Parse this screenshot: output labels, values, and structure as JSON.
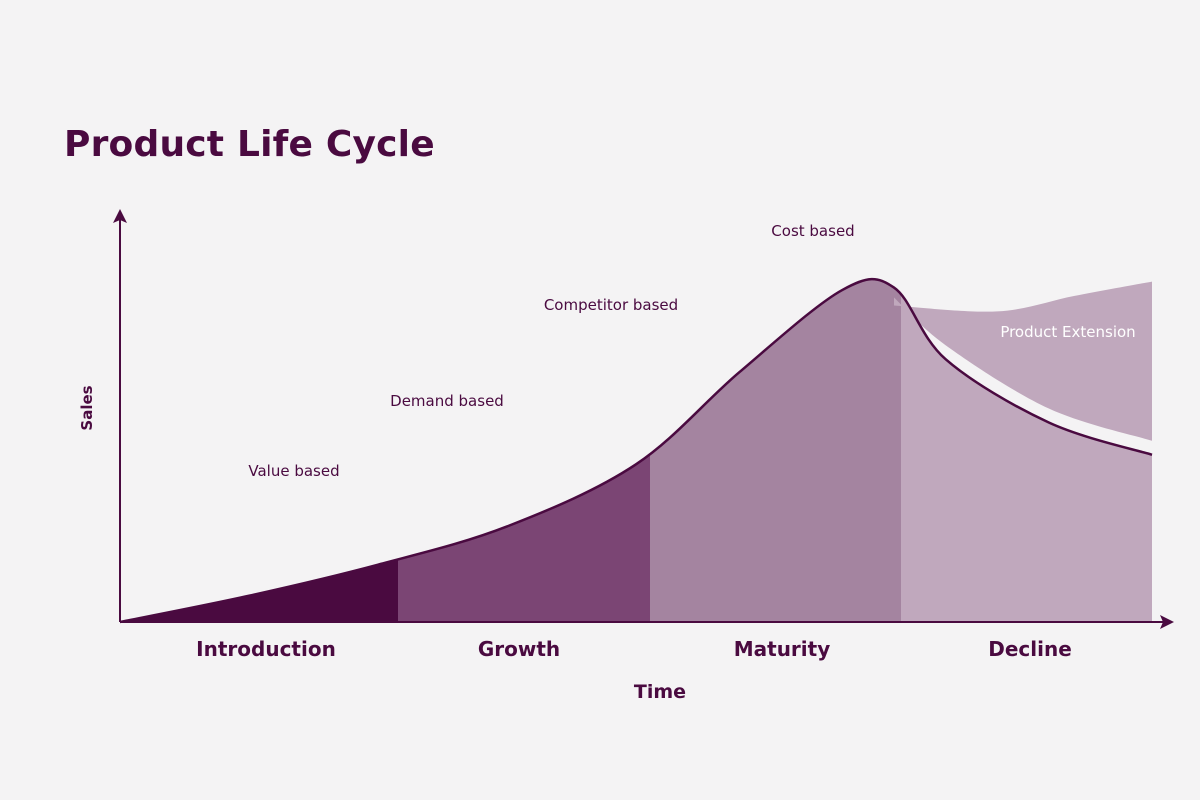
{
  "chart_data": {
    "type": "area",
    "title": "Product Life Cycle",
    "xlabel": "Time",
    "ylabel": "Sales",
    "grid": false,
    "stages": [
      "Introduction",
      "Growth",
      "Maturity",
      "Decline"
    ],
    "pricing_strategies": [
      "Value based",
      "Demand based",
      "Competitor based",
      "Cost based"
    ],
    "extension_label": "Product Extension",
    "series": [
      {
        "name": "Sales",
        "x": [
          0,
          0.5,
          1,
          1.5,
          2,
          2.4,
          2.8,
          3,
          3.2,
          3.6,
          4
        ],
        "values": [
          0,
          0.22,
          0.48,
          0.8,
          1.32,
          2.09,
          2.78,
          2.8,
          2.2,
          1.67,
          1.4
        ]
      },
      {
        "name": "Product Extension",
        "x": [
          3,
          3.4,
          3.7,
          4
        ],
        "values": [
          2.65,
          2.6,
          2.73,
          2.85
        ]
      }
    ],
    "xlim": [
      0,
      4.1
    ],
    "ylim": [
      0,
      3.5
    ],
    "colors": {
      "Introduction": "#4a0a40",
      "Growth": "#7b4574",
      "Maturity": "#a484a0",
      "Decline": "#c0a8bd",
      "Product Extension": "#c0a8bd",
      "line": "#4a0a40",
      "background": "#f4f3f4"
    }
  }
}
